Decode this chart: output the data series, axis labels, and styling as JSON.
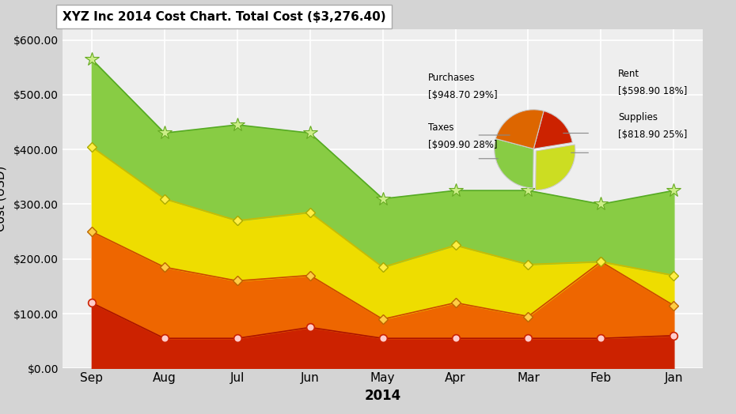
{
  "title": "XYZ Inc 2014 Cost Chart. Total Cost ($3,276.40)",
  "xlabel": "2014",
  "ylabel": "Cost (USD)",
  "months": [
    "Sep",
    "Aug",
    "Jul",
    "Jun",
    "May",
    "Apr",
    "Mar",
    "Feb",
    "Jan"
  ],
  "rent": [
    120,
    55,
    55,
    75,
    55,
    55,
    55,
    55,
    60
  ],
  "supplies": [
    130,
    130,
    105,
    95,
    35,
    65,
    40,
    140,
    55
  ],
  "taxes": [
    155,
    125,
    110,
    115,
    95,
    105,
    95,
    0,
    55
  ],
  "purchases": [
    160,
    120,
    175,
    145,
    125,
    100,
    135,
    105,
    155
  ],
  "color_rent": "#cc2200",
  "color_supplies": "#ee6600",
  "color_taxes": "#eedd00",
  "color_purchases": "#88cc44",
  "pie_values": [
    948.7,
    909.9,
    598.9,
    818.9
  ],
  "pie_colors": [
    "#88cc44",
    "#ccdd22",
    "#cc2200",
    "#dd6600"
  ],
  "pie_explode": [
    0.0,
    0.08,
    0.0,
    0.0
  ],
  "ylim": [
    0,
    620
  ],
  "yticks": [
    0,
    100,
    200,
    300,
    400,
    500,
    600
  ],
  "ytick_labels": [
    "$0.00",
    "$100.00",
    "$200.00",
    "$300.00",
    "$400.00",
    "$500.00",
    "$600.00"
  ],
  "bg_color": "#d4d4d4",
  "plot_bg": "#eeeeee"
}
